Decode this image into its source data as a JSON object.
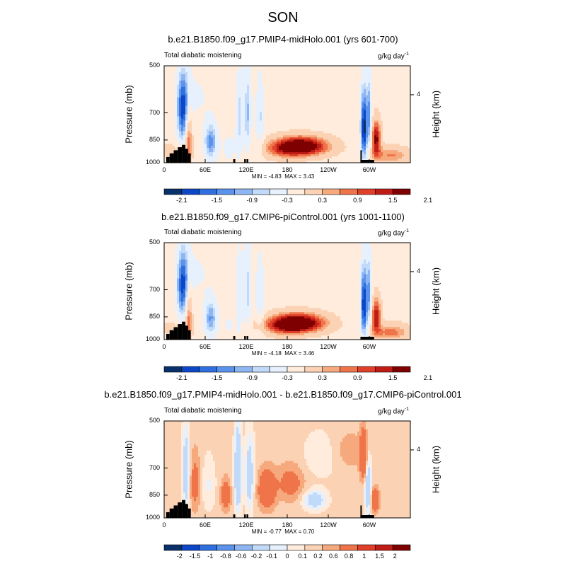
{
  "season": "SON",
  "palette": [
    "#08306b",
    "#0d47c8",
    "#2f6fe0",
    "#5a92ec",
    "#8db6f3",
    "#c2dafa",
    "#e6f1fd",
    "#ffecdc",
    "#fcd2b4",
    "#f7a97e",
    "#ef7449",
    "#e0402a",
    "#c01c16",
    "#7f0000"
  ],
  "chart_data": [
    {
      "type": "heatmap",
      "title": "b.e21.B1850.f09_g17.PMIP4-midHolo.001 (yrs 601-700)",
      "left_label": "Total diabatic moistening",
      "units": "g/kg day",
      "units_exp": "-1",
      "ylabel": "Pressure (mb)",
      "ylabel_right": "Height (km)",
      "x_ticks": [
        "0",
        "60E",
        "120E",
        "180",
        "120W",
        "60W"
      ],
      "x_tick_values": [
        0,
        60,
        120,
        180,
        240,
        300
      ],
      "xlim": [
        0,
        360
      ],
      "y_ticks": [
        "500",
        "700",
        "850",
        "1000"
      ],
      "y_tick_values": [
        500,
        700,
        850,
        1000
      ],
      "ylim": [
        500,
        1000
      ],
      "right_ticks": [
        "4"
      ],
      "min_label": "MIN = ",
      "min_value": "-4.83",
      "max_label": "MAX = ",
      "max_value": "3.43",
      "colorbar_labels": [
        "-2.1",
        "-1.5",
        "-0.9",
        "-0.3",
        "0.3",
        "0.9",
        "1.5",
        "2.1"
      ],
      "features": [
        {
          "lon": 28,
          "p": 680,
          "value": -2.4,
          "wlon": 10,
          "wp": 180
        },
        {
          "lon": 36,
          "p": 830,
          "value": 1.8,
          "wlon": 5,
          "wp": 190
        },
        {
          "lon": 68,
          "p": 860,
          "value": -1.7,
          "wlon": 10,
          "wp": 120
        },
        {
          "lon": 10,
          "p": 920,
          "value": 0.6,
          "wlon": 22,
          "wp": 50
        },
        {
          "lon": 50,
          "p": 620,
          "value": -0.4,
          "wlon": 20,
          "wp": 120
        },
        {
          "lon": 110,
          "p": 720,
          "value": -1.1,
          "wlon": 5,
          "wp": 220
        },
        {
          "lon": 122,
          "p": 700,
          "value": -1.3,
          "wlon": 6,
          "wp": 230
        },
        {
          "lon": 140,
          "p": 720,
          "value": -1.0,
          "wlon": 6,
          "wp": 200
        },
        {
          "lon": 95,
          "p": 900,
          "value": -0.5,
          "wlon": 12,
          "wp": 120
        },
        {
          "lon": 200,
          "p": 890,
          "value": 2.8,
          "wlon": 42,
          "wp": 65
        },
        {
          "lon": 170,
          "p": 920,
          "value": 0.6,
          "wlon": 30,
          "wp": 60
        },
        {
          "lon": 292,
          "p": 780,
          "value": -2.6,
          "wlon": 5,
          "wp": 220
        },
        {
          "lon": 300,
          "p": 720,
          "value": -1.6,
          "wlon": 4,
          "wp": 200
        },
        {
          "lon": 310,
          "p": 840,
          "value": 2.2,
          "wlon": 7,
          "wp": 110
        },
        {
          "lon": 332,
          "p": 950,
          "value": 1.2,
          "wlon": 30,
          "wp": 60
        }
      ],
      "background_value": 0.05,
      "terrain": [
        {
          "lon0": 3,
          "lon1": 8,
          "p": 960
        },
        {
          "lon0": 8,
          "lon1": 14,
          "p": 935
        },
        {
          "lon0": 14,
          "lon1": 20,
          "p": 915
        },
        {
          "lon0": 20,
          "lon1": 26,
          "p": 895
        },
        {
          "lon0": 26,
          "lon1": 31,
          "p": 880
        },
        {
          "lon0": 31,
          "lon1": 35,
          "p": 905
        },
        {
          "lon0": 35,
          "lon1": 39,
          "p": 935
        },
        {
          "lon0": 101,
          "lon1": 104,
          "p": 975
        },
        {
          "lon0": 117,
          "lon1": 119,
          "p": 975
        },
        {
          "lon0": 121,
          "lon1": 123,
          "p": 975
        },
        {
          "lon0": 287,
          "lon1": 307,
          "p": 980
        },
        {
          "lon0": 287,
          "lon1": 289,
          "p": 915
        }
      ]
    },
    {
      "type": "heatmap",
      "title": "b.e21.B1850.f09_g17.CMIP6-piControl.001 (yrs 1001-1100)",
      "left_label": "Total diabatic moistening",
      "units": "g/kg day",
      "units_exp": "-1",
      "ylabel": "Pressure (mb)",
      "ylabel_right": "Height (km)",
      "x_ticks": [
        "0",
        "60E",
        "120E",
        "180",
        "120W",
        "60W"
      ],
      "x_tick_values": [
        0,
        60,
        120,
        180,
        240,
        300
      ],
      "xlim": [
        0,
        360
      ],
      "y_ticks": [
        "500",
        "700",
        "850",
        "1000"
      ],
      "y_tick_values": [
        500,
        700,
        850,
        1000
      ],
      "ylim": [
        500,
        1000
      ],
      "right_ticks": [
        "4"
      ],
      "min_label": "MIN = ",
      "min_value": "-4.18",
      "max_label": "MAX = ",
      "max_value": "3.46",
      "colorbar_labels": [
        "-2.1",
        "-1.5",
        "-0.9",
        "-0.3",
        "0.3",
        "0.9",
        "1.5",
        "2.1"
      ],
      "features": [
        {
          "lon": 28,
          "p": 680,
          "value": -2.3,
          "wlon": 10,
          "wp": 180
        },
        {
          "lon": 36,
          "p": 830,
          "value": 1.7,
          "wlon": 5,
          "wp": 190
        },
        {
          "lon": 68,
          "p": 860,
          "value": -1.6,
          "wlon": 10,
          "wp": 120
        },
        {
          "lon": 10,
          "p": 920,
          "value": 0.5,
          "wlon": 22,
          "wp": 50
        },
        {
          "lon": 50,
          "p": 620,
          "value": -0.4,
          "wlon": 20,
          "wp": 120
        },
        {
          "lon": 110,
          "p": 720,
          "value": -0.9,
          "wlon": 5,
          "wp": 220
        },
        {
          "lon": 122,
          "p": 700,
          "value": -1.1,
          "wlon": 6,
          "wp": 230
        },
        {
          "lon": 140,
          "p": 720,
          "value": -0.9,
          "wlon": 6,
          "wp": 200
        },
        {
          "lon": 95,
          "p": 900,
          "value": -0.4,
          "wlon": 12,
          "wp": 120
        },
        {
          "lon": 195,
          "p": 890,
          "value": 2.9,
          "wlon": 42,
          "wp": 65
        },
        {
          "lon": 170,
          "p": 920,
          "value": 0.6,
          "wlon": 30,
          "wp": 60
        },
        {
          "lon": 292,
          "p": 780,
          "value": -2.5,
          "wlon": 5,
          "wp": 220
        },
        {
          "lon": 300,
          "p": 720,
          "value": -1.5,
          "wlon": 4,
          "wp": 200
        },
        {
          "lon": 310,
          "p": 840,
          "value": 2.0,
          "wlon": 7,
          "wp": 110
        },
        {
          "lon": 332,
          "p": 950,
          "value": 1.3,
          "wlon": 30,
          "wp": 60
        }
      ],
      "background_value": 0.05,
      "terrain": [
        {
          "lon0": 3,
          "lon1": 8,
          "p": 960
        },
        {
          "lon0": 8,
          "lon1": 14,
          "p": 935
        },
        {
          "lon0": 14,
          "lon1": 20,
          "p": 915
        },
        {
          "lon0": 20,
          "lon1": 26,
          "p": 895
        },
        {
          "lon0": 26,
          "lon1": 31,
          "p": 880
        },
        {
          "lon0": 31,
          "lon1": 35,
          "p": 905
        },
        {
          "lon0": 35,
          "lon1": 39,
          "p": 935
        },
        {
          "lon0": 101,
          "lon1": 104,
          "p": 975
        },
        {
          "lon0": 117,
          "lon1": 119,
          "p": 975
        },
        {
          "lon0": 121,
          "lon1": 123,
          "p": 975
        },
        {
          "lon0": 287,
          "lon1": 307,
          "p": 980
        }
      ]
    },
    {
      "type": "heatmap",
      "title": "b.e21.B1850.f09_g17.PMIP4-midHolo.001 - b.e21.B1850.f09_g17.CMIP6-piControl.001",
      "left_label": "Total diabatic moistening",
      "units": "g/kg day",
      "units_exp": "-1",
      "ylabel": "Pressure (mb)",
      "ylabel_right": "Height (km)",
      "x_ticks": [
        "0",
        "60E",
        "120E",
        "180",
        "120W",
        "60W"
      ],
      "x_tick_values": [
        0,
        60,
        120,
        180,
        240,
        300
      ],
      "xlim": [
        0,
        360
      ],
      "y_ticks": [
        "500",
        "700",
        "850",
        "1000"
      ],
      "y_tick_values": [
        500,
        700,
        850,
        1000
      ],
      "ylim": [
        500,
        1000
      ],
      "right_ticks": [
        "4"
      ],
      "min_label": "MIN = ",
      "min_value": "-0.77",
      "max_label": "MAX = ",
      "max_value": "0.70",
      "colorbar_labels": [
        "-2",
        "-1.5",
        "-1",
        "-0.8",
        "-0.6",
        "-0.2",
        "-0.1",
        "0",
        "0.1",
        "0.2",
        "0.6",
        "0.8",
        "1",
        "1.5",
        "2"
      ],
      "features": [
        {
          "lon": 32,
          "p": 720,
          "value": -0.45,
          "wlon": 5,
          "wp": 200
        },
        {
          "lon": 45,
          "p": 780,
          "value": 0.25,
          "wlon": 8,
          "wp": 160
        },
        {
          "lon": 65,
          "p": 790,
          "value": -0.15,
          "wlon": 10,
          "wp": 150
        },
        {
          "lon": 90,
          "p": 850,
          "value": 0.35,
          "wlon": 7,
          "wp": 90
        },
        {
          "lon": 108,
          "p": 720,
          "value": -0.55,
          "wlon": 5,
          "wp": 220
        },
        {
          "lon": 125,
          "p": 740,
          "value": -0.4,
          "wlon": 6,
          "wp": 200
        },
        {
          "lon": 150,
          "p": 820,
          "value": 0.45,
          "wlon": 12,
          "wp": 110
        },
        {
          "lon": 185,
          "p": 780,
          "value": 0.25,
          "wlon": 20,
          "wp": 100
        },
        {
          "lon": 220,
          "p": 880,
          "value": -0.4,
          "wlon": 16,
          "wp": 60
        },
        {
          "lon": 230,
          "p": 640,
          "value": -0.15,
          "wlon": 25,
          "wp": 100
        },
        {
          "lon": 292,
          "p": 650,
          "value": 0.55,
          "wlon": 5,
          "wp": 110
        },
        {
          "lon": 298,
          "p": 800,
          "value": -0.5,
          "wlon": 5,
          "wp": 170
        },
        {
          "lon": 308,
          "p": 880,
          "value": 0.45,
          "wlon": 6,
          "wp": 70
        },
        {
          "lon": 270,
          "p": 620,
          "value": 0.12,
          "wlon": 30,
          "wp": 90
        }
      ],
      "background_value": 0.04,
      "terrain": [
        {
          "lon0": 3,
          "lon1": 8,
          "p": 960
        },
        {
          "lon0": 8,
          "lon1": 14,
          "p": 935
        },
        {
          "lon0": 14,
          "lon1": 20,
          "p": 915
        },
        {
          "lon0": 20,
          "lon1": 26,
          "p": 895
        },
        {
          "lon0": 26,
          "lon1": 31,
          "p": 880
        },
        {
          "lon0": 31,
          "lon1": 35,
          "p": 905
        },
        {
          "lon0": 35,
          "lon1": 39,
          "p": 935
        },
        {
          "lon0": 101,
          "lon1": 104,
          "p": 975
        },
        {
          "lon0": 117,
          "lon1": 119,
          "p": 975
        },
        {
          "lon0": 121,
          "lon1": 123,
          "p": 975
        },
        {
          "lon0": 287,
          "lon1": 307,
          "p": 980
        },
        {
          "lon0": 287,
          "lon1": 289,
          "p": 915
        }
      ]
    }
  ]
}
